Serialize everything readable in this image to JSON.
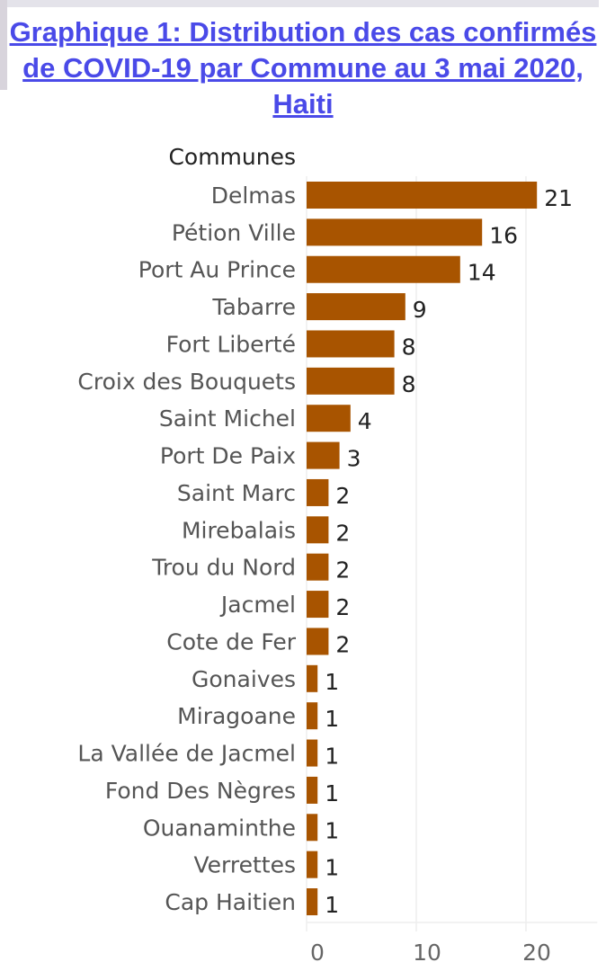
{
  "chart_data": {
    "type": "bar",
    "orientation": "horizontal",
    "title": "Graphique 1: Distribution des cas confirmés de COVID-19 par Commune au 3 mai 2020, Haiti",
    "ylabel": "Communes",
    "xlabel": "",
    "categories": [
      "Delmas",
      "Pétion Ville",
      "Port Au Prince",
      "Tabarre",
      "Fort Liberté",
      "Croix des Bouquets",
      "Saint Michel",
      "Port De Paix",
      "Saint Marc",
      "Mirebalais",
      "Trou du Nord",
      "Jacmel",
      "Cote de Fer",
      "Gonaives",
      "Miragoane",
      "La Vallée de Jacmel",
      "Fond Des Nègres",
      "Ouanaminthe",
      "Verrettes",
      "Cap Haitien"
    ],
    "values": [
      21,
      16,
      14,
      9,
      8,
      8,
      4,
      3,
      2,
      2,
      2,
      2,
      2,
      1,
      1,
      1,
      1,
      1,
      1,
      1
    ],
    "xticks": [
      "0",
      "10",
      "20"
    ],
    "xlim": [
      0,
      26.5
    ],
    "grid": true,
    "bar_color": "#a85400"
  }
}
